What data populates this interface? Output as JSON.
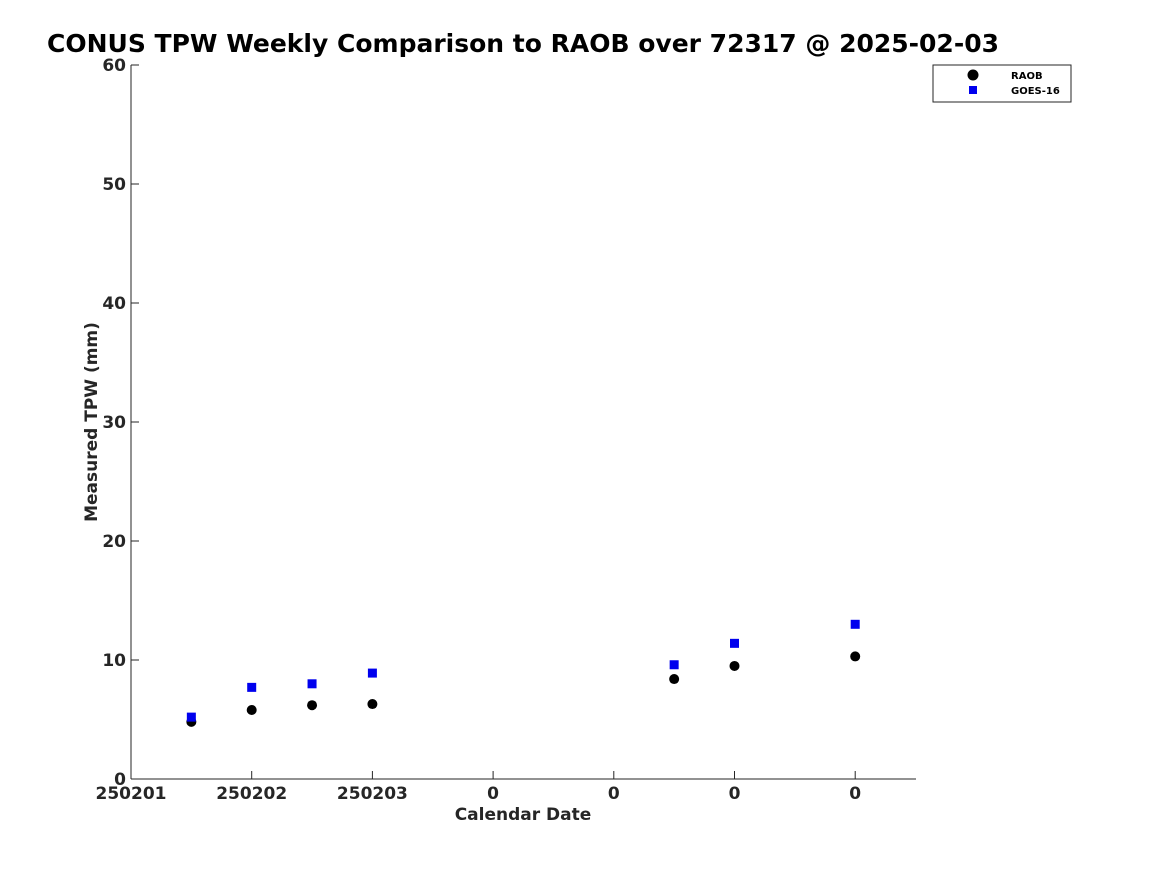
{
  "chart_data": {
    "type": "scatter",
    "title": "CONUS TPW Weekly Comparison to RAOB over 72317 @ 2025-02-03",
    "xlabel": "Calendar Date",
    "ylabel": "Measured TPW (mm)",
    "ylim": [
      0,
      60
    ],
    "xlim": [
      0,
      6.5
    ],
    "yticks": [
      0,
      10,
      20,
      30,
      40,
      50,
      60
    ],
    "xticks": [
      {
        "value": 0,
        "label": "250201"
      },
      {
        "value": 1,
        "label": "250202"
      },
      {
        "value": 2,
        "label": "250203"
      },
      {
        "value": 3,
        "label": "0"
      },
      {
        "value": 4,
        "label": "0"
      },
      {
        "value": 5,
        "label": "0"
      },
      {
        "value": 6,
        "label": "0"
      }
    ],
    "grid": false,
    "legend_position": "top-right",
    "series": [
      {
        "name": "RAOB",
        "marker": "circle",
        "color": "#000000",
        "points": [
          {
            "x": 0.5,
            "y": 4.8
          },
          {
            "x": 1.0,
            "y": 5.8
          },
          {
            "x": 1.5,
            "y": 6.2
          },
          {
            "x": 2.0,
            "y": 6.3
          },
          {
            "x": 4.5,
            "y": 8.4
          },
          {
            "x": 5.0,
            "y": 9.5
          },
          {
            "x": 6.0,
            "y": 10.3
          }
        ]
      },
      {
        "name": "GOES-16",
        "marker": "square",
        "color": "#0000ee",
        "points": [
          {
            "x": 0.5,
            "y": 5.2
          },
          {
            "x": 1.0,
            "y": 7.7
          },
          {
            "x": 1.5,
            "y": 8.0
          },
          {
            "x": 2.0,
            "y": 8.9
          },
          {
            "x": 4.5,
            "y": 9.6
          },
          {
            "x": 5.0,
            "y": 11.4
          },
          {
            "x": 6.0,
            "y": 13.0
          }
        ]
      }
    ]
  }
}
